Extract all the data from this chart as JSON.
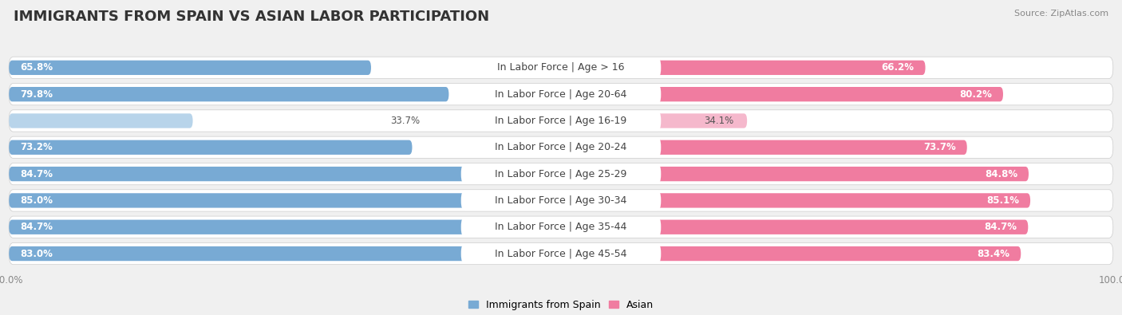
{
  "title": "IMMIGRANTS FROM SPAIN VS ASIAN LABOR PARTICIPATION",
  "source": "Source: ZipAtlas.com",
  "categories": [
    "In Labor Force | Age > 16",
    "In Labor Force | Age 20-64",
    "In Labor Force | Age 16-19",
    "In Labor Force | Age 20-24",
    "In Labor Force | Age 25-29",
    "In Labor Force | Age 30-34",
    "In Labor Force | Age 35-44",
    "In Labor Force | Age 45-54"
  ],
  "spain_values": [
    65.8,
    79.8,
    33.7,
    73.2,
    84.7,
    85.0,
    84.7,
    83.0
  ],
  "asian_values": [
    66.2,
    80.2,
    34.1,
    73.7,
    84.8,
    85.1,
    84.7,
    83.4
  ],
  "spain_color": "#78aad4",
  "spain_color_light": "#b8d4ea",
  "asian_color": "#f07ca0",
  "asian_color_light": "#f5b8cc",
  "background_color": "#f0f0f0",
  "row_bg_color": "#e8e8e8",
  "bar_bg_color": "#ffffff",
  "title_fontsize": 13,
  "label_fontsize": 9,
  "value_fontsize": 8.5,
  "tick_fontsize": 8.5
}
